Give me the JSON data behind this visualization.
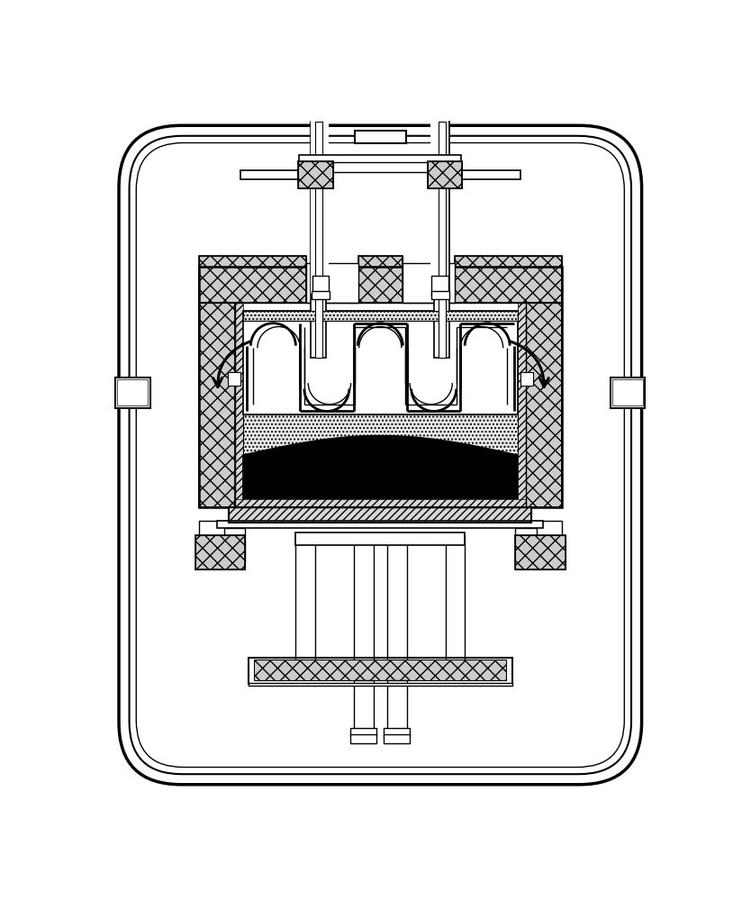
{
  "bg": "#ffffff",
  "lc": "#000000",
  "fig_w": 8.24,
  "fig_h": 10.0,
  "dpi": 100,
  "ins_color": "#cccccc",
  "dot_color": "#e8e8e8",
  "diag_color": "#d8d8d8"
}
